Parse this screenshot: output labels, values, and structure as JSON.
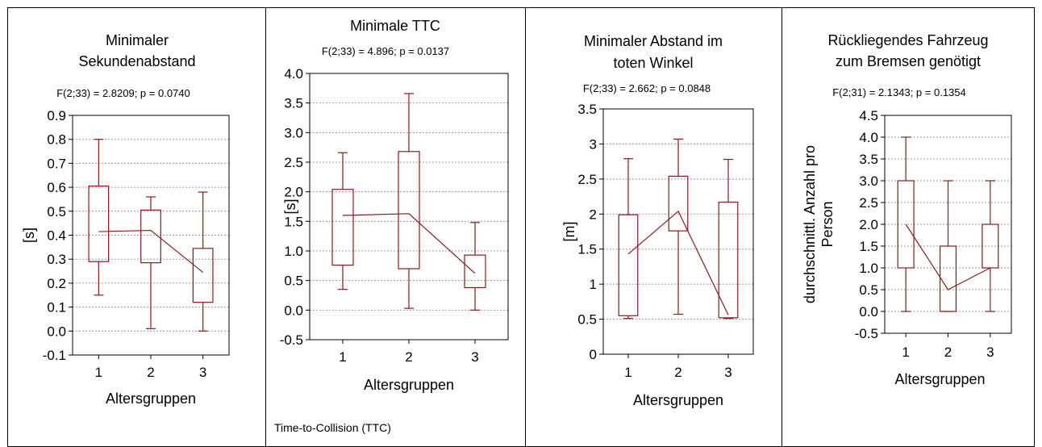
{
  "chart_data": [
    {
      "type": "boxplot",
      "title": [
        "Minimaler",
        "Sekundenabstand"
      ],
      "stat": "F(2;33) = 2.8209; p = 0.0740",
      "ylabel": "[s]",
      "xlabel": "Altersgruppen",
      "categories": [
        "1",
        "2",
        "3"
      ],
      "ylim": [
        -0.1,
        0.9
      ],
      "yticks": [
        "-0.1",
        "0.0",
        "0.1",
        "0.2",
        "0.3",
        "0.4",
        "0.5",
        "0.6",
        "0.7",
        "0.8",
        "0.9"
      ],
      "grid": true,
      "boxes": [
        {
          "min": 0.15,
          "q1": 0.29,
          "median": 0.415,
          "q3": 0.605,
          "max": 0.8
        },
        {
          "min": 0.01,
          "q1": 0.285,
          "median": 0.42,
          "q3": 0.505,
          "max": 0.56
        },
        {
          "min": 0.0,
          "q1": 0.12,
          "median": 0.245,
          "q3": 0.345,
          "max": 0.58
        }
      ],
      "footnote": ""
    },
    {
      "type": "boxplot",
      "title": [
        "Minimale TTC"
      ],
      "stat": "F(2;33) = 4.896; p = 0.0137",
      "ylabel": "[s]",
      "xlabel": "Altersgruppen",
      "categories": [
        "1",
        "2",
        "3"
      ],
      "ylim": [
        -0.5,
        4.0
      ],
      "yticks": [
        "-0.5",
        "0.0",
        "0.5",
        "1.0",
        "1.5",
        "2.0",
        "2.5",
        "3.0",
        "3.5",
        "4.0"
      ],
      "grid": true,
      "boxes": [
        {
          "min": 0.35,
          "q1": 0.76,
          "median": 1.6,
          "q3": 2.04,
          "max": 2.66
        },
        {
          "min": 0.03,
          "q1": 0.7,
          "median": 1.63,
          "q3": 2.68,
          "max": 3.66
        },
        {
          "min": 0.0,
          "q1": 0.38,
          "median": 0.62,
          "q3": 0.93,
          "max": 1.48
        }
      ],
      "footnote": "Time-to-Collision (TTC)"
    },
    {
      "type": "boxplot",
      "title": [
        "Minimaler Abstand im",
        "toten Winkel"
      ],
      "stat": "F(2;33) = 2.662; p = 0.0848",
      "ylabel": "[m]",
      "xlabel": "Altersgruppen",
      "categories": [
        "1",
        "2",
        "3"
      ],
      "ylim": [
        0,
        3.5
      ],
      "yticks": [
        "0",
        "0.5",
        "1",
        "1.5",
        "2",
        "2.5",
        "3",
        "3.5"
      ],
      "grid": true,
      "boxes": [
        {
          "min": 0.51,
          "q1": 0.55,
          "median": 1.43,
          "q3": 1.99,
          "max": 2.79
        },
        {
          "min": 0.57,
          "q1": 1.76,
          "median": 2.04,
          "q3": 2.54,
          "max": 3.07
        },
        {
          "min": 0.51,
          "q1": 0.52,
          "median": 0.56,
          "q3": 2.17,
          "max": 2.78
        }
      ],
      "footnote": ""
    },
    {
      "type": "boxplot",
      "title": [
        "Rückliegendes Fahrzeug",
        "zum Bremsen genötigt"
      ],
      "stat": "F(2;31) = 2.1343; p = 0.1354",
      "ylabel": [
        "durchschnittl. Anzahl pro",
        "Person"
      ],
      "xlabel": "Altersgruppen",
      "categories": [
        "1",
        "2",
        "3"
      ],
      "ylim": [
        -0.5,
        4.5
      ],
      "yticks": [
        "-0.5",
        "0.0",
        "0.5",
        "1.0",
        "1.5",
        "2.0",
        "2.5",
        "3.0",
        "3.5",
        "4.0",
        "4.5"
      ],
      "grid": true,
      "boxes": [
        {
          "min": 0,
          "q1": 1.0,
          "median": 2.0,
          "q3": 3.0,
          "max": 4.0
        },
        {
          "min": 0,
          "q1": 0.0,
          "median": 0.5,
          "q3": 1.5,
          "max": 3.0
        },
        {
          "min": 0,
          "q1": 1.0,
          "median": 1.0,
          "q3": 2.0,
          "max": 3.0
        }
      ],
      "footnote": ""
    }
  ],
  "colors": {
    "series": "#8b1a1a",
    "grid": "#9a9a9a",
    "frame": "#000000"
  }
}
